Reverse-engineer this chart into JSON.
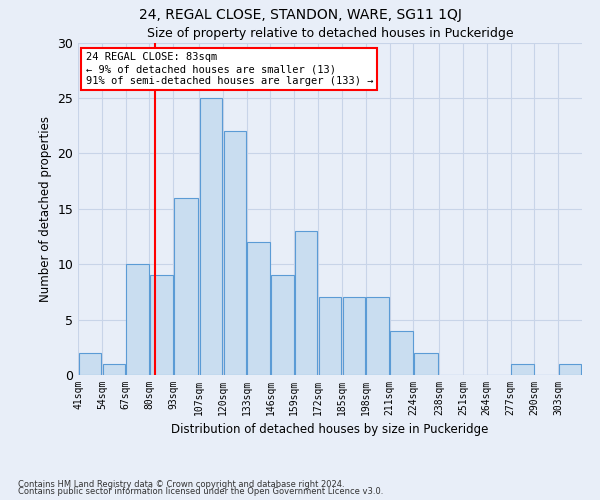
{
  "title1": "24, REGAL CLOSE, STANDON, WARE, SG11 1QJ",
  "title2": "Size of property relative to detached houses in Puckeridge",
  "xlabel": "Distribution of detached houses by size in Puckeridge",
  "ylabel": "Number of detached properties",
  "bin_labels": [
    "41sqm",
    "54sqm",
    "67sqm",
    "80sqm",
    "93sqm",
    "107sqm",
    "120sqm",
    "133sqm",
    "146sqm",
    "159sqm",
    "172sqm",
    "185sqm",
    "198sqm",
    "211sqm",
    "224sqm",
    "238sqm",
    "251sqm",
    "264sqm",
    "277sqm",
    "290sqm",
    "303sqm"
  ],
  "bin_edges": [
    41,
    54,
    67,
    80,
    93,
    107,
    120,
    133,
    146,
    159,
    172,
    185,
    198,
    211,
    224,
    238,
    251,
    264,
    277,
    290,
    303,
    316
  ],
  "values": [
    2,
    1,
    10,
    9,
    16,
    25,
    22,
    12,
    9,
    13,
    7,
    7,
    7,
    4,
    2,
    0,
    0,
    0,
    1,
    0,
    1
  ],
  "bar_color": "#c9ddf0",
  "bar_edge_color": "#5b9bd5",
  "red_line_x": 83,
  "annotation_lines": [
    "24 REGAL CLOSE: 83sqm",
    "← 9% of detached houses are smaller (13)",
    "91% of semi-detached houses are larger (133) →"
  ],
  "annotation_box_color": "white",
  "annotation_box_edge_color": "red",
  "grid_color": "#c8d4e8",
  "background_color": "#e8eef8",
  "ylim": [
    0,
    30
  ],
  "yticks": [
    0,
    5,
    10,
    15,
    20,
    25,
    30
  ],
  "footer1": "Contains HM Land Registry data © Crown copyright and database right 2024.",
  "footer2": "Contains public sector information licensed under the Open Government Licence v3.0."
}
